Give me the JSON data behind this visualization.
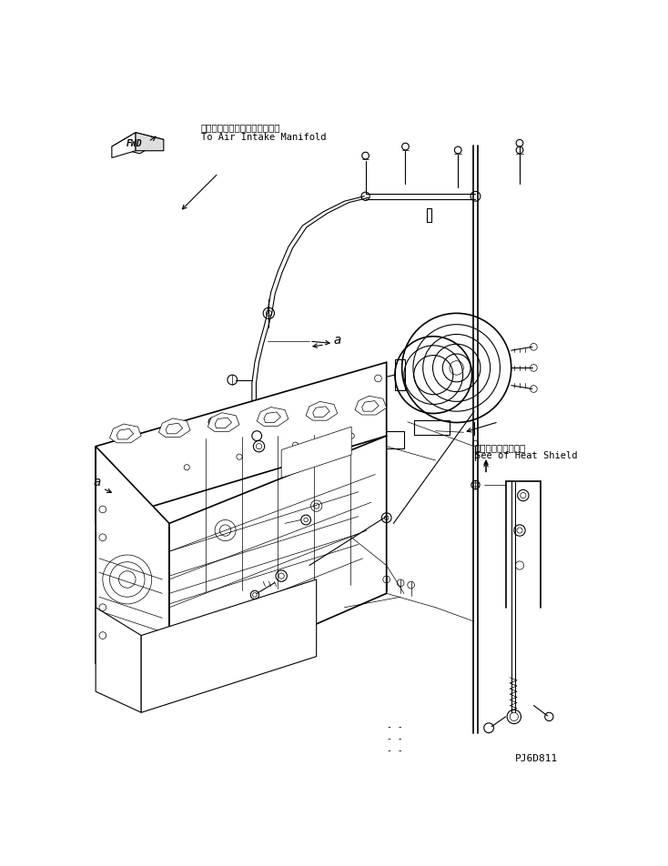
{
  "fig_width": 7.34,
  "fig_height": 9.53,
  "dpi": 100,
  "bg_color": "#ffffff",
  "line_color": "#000000",
  "annotation1_jp": "エアーインテークマニホルドヘ",
  "annotation1_en": "To Air Intake Manifold",
  "annotation2_jp": "ヒートシールド参照",
  "annotation2_en": "See of Heat Shield",
  "part_number": "PJ6D811",
  "fwd_label": "FWD",
  "text_fontsize": 7.5,
  "mono_font": "monospace"
}
